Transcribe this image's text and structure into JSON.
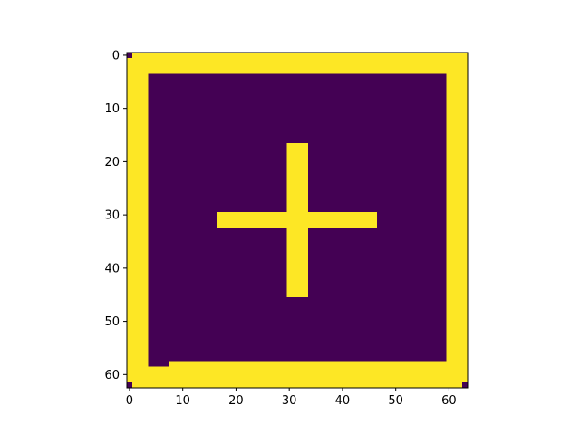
{
  "chart_data": {
    "type": "heatmap",
    "title": "",
    "xlabel": "",
    "ylabel": "",
    "grid": false,
    "legend": "none",
    "shape": [
      63,
      64
    ],
    "xlim": [
      -0.5,
      63.5
    ],
    "ylim": [
      62.5,
      -0.5
    ],
    "x_ticks": [
      0,
      10,
      20,
      30,
      40,
      50,
      60
    ],
    "y_ticks": [
      0,
      10,
      20,
      30,
      40,
      50,
      60
    ],
    "colormap": {
      "0": "#440154",
      "1": "#fde725"
    },
    "regions": [
      {
        "name": "background",
        "value": 0,
        "rows": [
          0,
          62
        ],
        "cols": [
          0,
          63
        ]
      },
      {
        "name": "top-border",
        "value": 1,
        "rows": [
          0,
          3
        ],
        "cols": [
          0,
          63
        ]
      },
      {
        "name": "left-border",
        "value": 1,
        "rows": [
          0,
          62
        ],
        "cols": [
          0,
          3
        ]
      },
      {
        "name": "right-border",
        "value": 1,
        "rows": [
          0,
          62
        ],
        "cols": [
          60,
          63
        ]
      },
      {
        "name": "bottom-border",
        "value": 1,
        "rows": [
          59,
          62
        ],
        "cols": [
          0,
          63
        ]
      },
      {
        "name": "bottom-step",
        "value": 1,
        "rows": [
          58,
          58
        ],
        "cols": [
          8,
          63
        ]
      },
      {
        "name": "cross-vertical",
        "value": 1,
        "rows": [
          17,
          45
        ],
        "cols": [
          30,
          33
        ]
      },
      {
        "name": "cross-horizontal",
        "value": 1,
        "rows": [
          30,
          32
        ],
        "cols": [
          17,
          46
        ]
      },
      {
        "name": "corner-top-left",
        "value": 0,
        "rows": [
          0,
          0
        ],
        "cols": [
          0,
          0
        ]
      },
      {
        "name": "corner-bottom-left",
        "value": 0,
        "rows": [
          62,
          62
        ],
        "cols": [
          0,
          0
        ]
      },
      {
        "name": "corner-bottom-right",
        "value": 0,
        "rows": [
          62,
          62
        ],
        "cols": [
          63,
          63
        ]
      }
    ]
  }
}
